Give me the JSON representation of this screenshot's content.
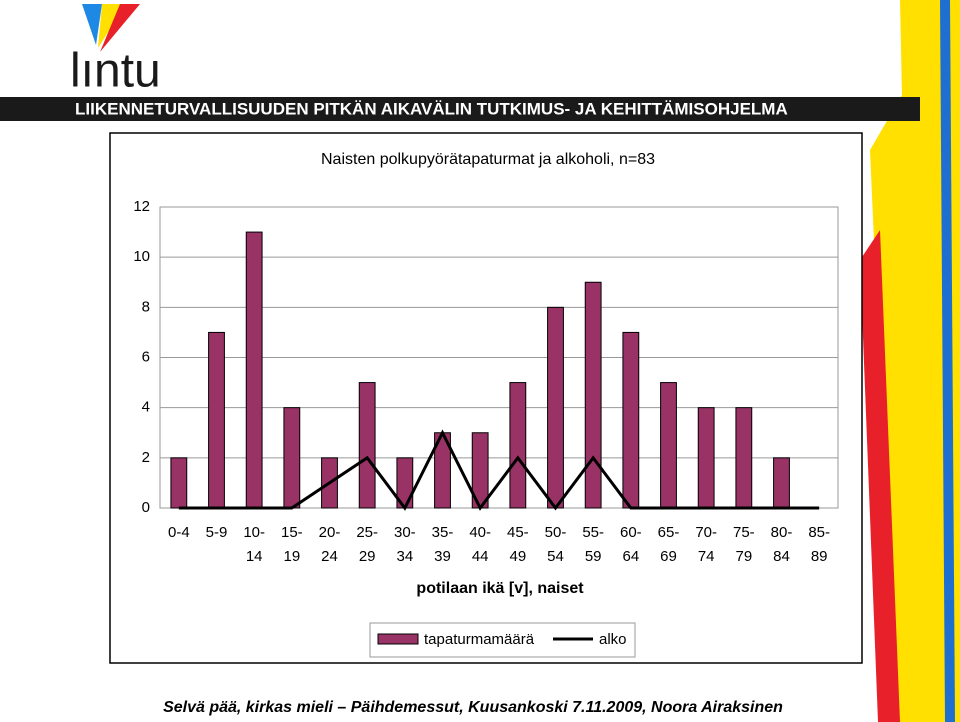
{
  "header": {
    "logo": "lıntu",
    "program": "LIIKENNETURVALLISUUDEN PITKÄN AIKAVÄLIN TUTKIMUS- JA KEHITTÄMISOHJELMA"
  },
  "footer": "Selvä pää, kirkas mieli – Päihdemessut, Kuusankoski 7.11.2009, Noora Airaksinen",
  "chart_data": {
    "type": "bar",
    "title": "Naisten polkupyörätapaturmat ja alkoholi, n=83",
    "x_label": "potilaan ikä [v], naiset",
    "categories": [
      "0-4",
      "5-9",
      "10- 14",
      "15- 19",
      "20- 24",
      "25- 29",
      "30- 34",
      "35- 39",
      "40- 44",
      "45- 49",
      "50- 54",
      "55- 59",
      "60- 64",
      "65- 69",
      "70- 74",
      "75- 79",
      "80- 84",
      "85- 89"
    ],
    "series": [
      {
        "name": "tapaturmamäärä",
        "type": "bar",
        "color": "#993366",
        "values": [
          2,
          7,
          11,
          4,
          2,
          5,
          2,
          3,
          3,
          5,
          8,
          9,
          7,
          5,
          4,
          4,
          2,
          0
        ]
      },
      {
        "name": "alko",
        "type": "line",
        "color": "#000000",
        "values": [
          0,
          0,
          0,
          0,
          1,
          2,
          0,
          3,
          0,
          2,
          0,
          2,
          0,
          0,
          0,
          0,
          0,
          0
        ]
      }
    ],
    "ylim": [
      0,
      12
    ],
    "yticks": [
      0,
      2,
      4,
      6,
      8,
      10,
      12
    ],
    "grid": true,
    "legend": "bottom"
  }
}
